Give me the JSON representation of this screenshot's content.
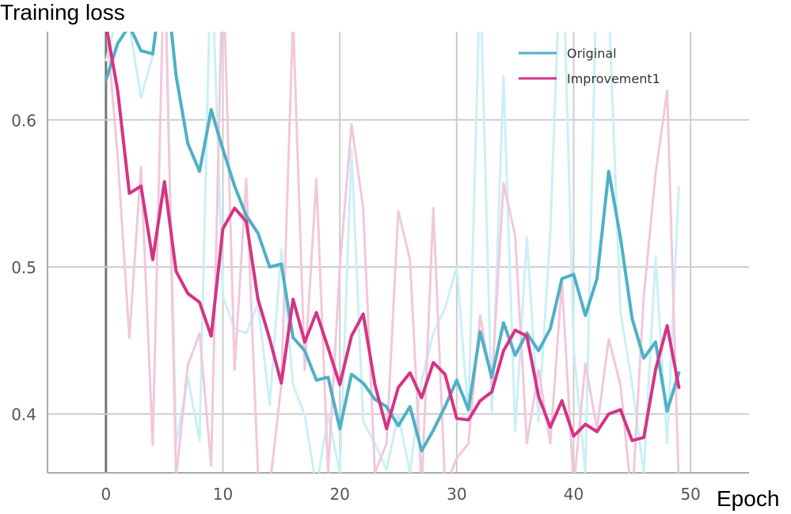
{
  "chart_data": {
    "type": "line",
    "ylabel": "Training loss",
    "xlabel": "Epoch",
    "xlim": [
      -5,
      55
    ],
    "ylim": [
      0.36,
      0.66
    ],
    "x_ticks": [
      "0",
      "10",
      "20",
      "30",
      "40",
      "50"
    ],
    "y_ticks": [
      "0.4",
      "0.5",
      "0.6"
    ],
    "grid": true,
    "legend_position": "top-right",
    "series": [
      {
        "name": "Original",
        "color": "#4fb0c6",
        "raw_color": "#c9f0f6",
        "x": [
          0,
          1,
          2,
          3,
          4,
          5,
          6,
          7,
          8,
          9,
          10,
          11,
          12,
          13,
          14,
          15,
          16,
          17,
          18,
          19,
          20,
          21,
          22,
          23,
          24,
          25,
          26,
          27,
          28,
          29,
          30,
          31,
          32,
          33,
          34,
          35,
          36,
          37,
          38,
          39,
          40,
          41,
          42,
          43,
          44,
          45,
          46,
          47,
          48,
          49
        ],
        "values": [
          0.627,
          0.652,
          0.664,
          0.647,
          0.645,
          0.706,
          0.63,
          0.584,
          0.565,
          0.607,
          0.58,
          0.555,
          0.535,
          0.523,
          0.5,
          0.502,
          0.452,
          0.443,
          0.423,
          0.425,
          0.39,
          0.427,
          0.421,
          0.41,
          0.405,
          0.392,
          0.405,
          0.375,
          0.389,
          0.405,
          0.423,
          0.403,
          0.456,
          0.425,
          0.462,
          0.44,
          0.455,
          0.443,
          0.458,
          0.492,
          0.495,
          0.467,
          0.492,
          0.565,
          0.52,
          0.465,
          0.438,
          0.449,
          0.402,
          0.428
        ],
        "raw_values": [
          0.64,
          0.672,
          0.664,
          0.615,
          0.644,
          0.72,
          0.38,
          0.425,
          0.382,
          0.72,
          0.48,
          0.458,
          0.455,
          0.475,
          0.406,
          0.512,
          0.42,
          0.399,
          0.35,
          0.399,
          0.36,
          0.58,
          0.395,
          0.38,
          0.362,
          0.4,
          0.36,
          0.423,
          0.455,
          0.472,
          0.5,
          0.399,
          0.7,
          0.4,
          0.63,
          0.388,
          0.52,
          0.395,
          0.523,
          0.74,
          0.445,
          0.36,
          0.71,
          0.68,
          0.47,
          0.42,
          0.36,
          0.507,
          0.38,
          0.555
        ]
      },
      {
        "name": "Improvement1",
        "color": "#d63384",
        "raw_color": "#f2c7dc",
        "x": [
          0,
          1,
          2,
          3,
          4,
          5,
          6,
          7,
          8,
          9,
          10,
          11,
          12,
          13,
          14,
          15,
          16,
          17,
          18,
          19,
          20,
          21,
          22,
          23,
          24,
          25,
          26,
          27,
          28,
          29,
          30,
          31,
          32,
          33,
          34,
          35,
          36,
          37,
          38,
          39,
          40,
          41,
          42,
          43,
          44,
          45,
          46,
          47,
          48,
          49
        ],
        "values": [
          0.665,
          0.62,
          0.55,
          0.555,
          0.505,
          0.558,
          0.497,
          0.482,
          0.476,
          0.453,
          0.526,
          0.54,
          0.531,
          0.478,
          0.451,
          0.421,
          0.478,
          0.449,
          0.469,
          0.445,
          0.42,
          0.453,
          0.468,
          0.42,
          0.39,
          0.418,
          0.428,
          0.411,
          0.435,
          0.427,
          0.397,
          0.396,
          0.409,
          0.415,
          0.443,
          0.457,
          0.453,
          0.412,
          0.391,
          0.409,
          0.385,
          0.393,
          0.388,
          0.4,
          0.403,
          0.382,
          0.384,
          0.43,
          0.46,
          0.418
        ],
        "raw_values": [
          0.67,
          0.575,
          0.452,
          0.568,
          0.379,
          0.72,
          0.357,
          0.433,
          0.455,
          0.365,
          0.71,
          0.43,
          0.56,
          0.36,
          0.35,
          0.42,
          0.67,
          0.43,
          0.56,
          0.36,
          0.5,
          0.597,
          0.54,
          0.36,
          0.38,
          0.538,
          0.505,
          0.35,
          0.54,
          0.35,
          0.37,
          0.38,
          0.467,
          0.42,
          0.557,
          0.521,
          0.38,
          0.43,
          0.38,
          0.49,
          0.35,
          0.434,
          0.39,
          0.451,
          0.42,
          0.34,
          0.48,
          0.563,
          0.62,
          0.35
        ]
      }
    ]
  }
}
